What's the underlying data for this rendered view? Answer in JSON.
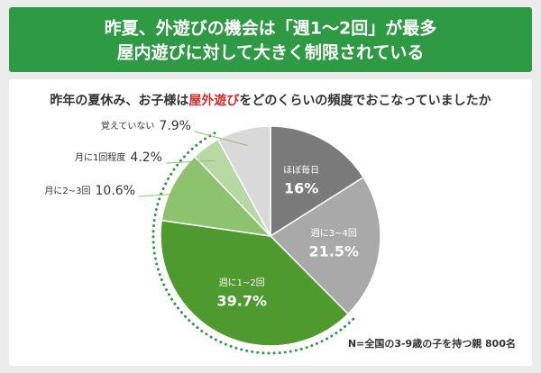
{
  "chart_data": {
    "type": "pie",
    "title": "昨夏、外遊びの機会は「週1～2回」が最多",
    "subtitle": "屋内遊びに対して大きく制限されている",
    "question": [
      "昨年の夏休み、お子様は",
      "屋外遊び",
      "をどのくらいの頻度でおこなっていましたか"
    ],
    "categories": [
      "ほぼ毎日",
      "週に3~4回",
      "週に1~2回",
      "月に2~3回",
      "月に1回程度",
      "覚えていない"
    ],
    "values": [
      16,
      21.5,
      39.7,
      10.6,
      4.2,
      7.9
    ],
    "value_labels": [
      "16%",
      "21.5%",
      "39.7%",
      "10.6%",
      "4.2%",
      "7.9%"
    ],
    "colors": [
      "#7a7a7a",
      "#a9a9a9",
      "#4e9a2f",
      "#8dc26f",
      "#b7d8a3",
      "#d9d9d9"
    ],
    "note": "N=全国の3-9歳の子を持つ親 800名"
  }
}
